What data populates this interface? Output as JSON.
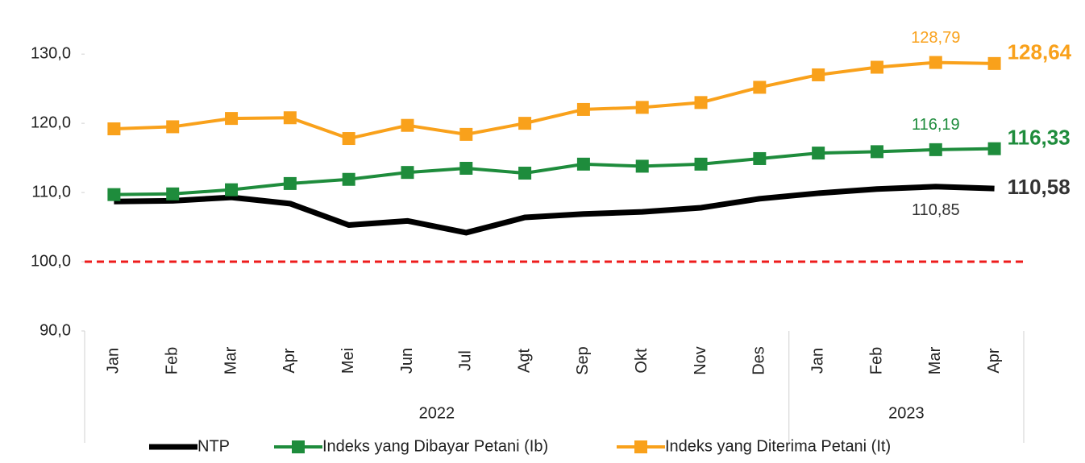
{
  "chart_data": {
    "type": "line",
    "categories": [
      "Jan",
      "Feb",
      "Mar",
      "Apr",
      "Mei",
      "Jun",
      "Jul",
      "Agt",
      "Sep",
      "Okt",
      "Nov",
      "Des",
      "Jan",
      "Feb",
      "Mar",
      "Apr"
    ],
    "category_groups": [
      {
        "name": "2022",
        "size": 12
      },
      {
        "name": "2023",
        "size": 4
      }
    ],
    "series": [
      {
        "name": "NTP",
        "color": "#000000",
        "marker": false,
        "values": [
          108.7,
          108.8,
          109.3,
          108.4,
          105.3,
          105.9,
          104.2,
          106.4,
          106.9,
          107.2,
          107.8,
          109.1,
          109.9,
          110.5,
          110.85,
          110.58
        ],
        "value_labels": [
          null,
          null,
          null,
          null,
          null,
          null,
          null,
          null,
          null,
          null,
          null,
          null,
          null,
          null,
          "110,85",
          "110,58"
        ]
      },
      {
        "name": "Indeks yang Dibayar Petani (Ib)",
        "color": "#1e8c3c",
        "marker": true,
        "values": [
          109.7,
          109.8,
          110.4,
          111.3,
          111.9,
          112.9,
          113.5,
          112.8,
          114.1,
          113.8,
          114.1,
          114.9,
          115.7,
          115.9,
          116.19,
          116.33
        ],
        "value_labels": [
          null,
          null,
          null,
          null,
          null,
          null,
          null,
          null,
          null,
          null,
          null,
          null,
          null,
          null,
          "116,19",
          "116,33"
        ]
      },
      {
        "name": "Indeks yang Diterima Petani (It)",
        "color": "#f9a11b",
        "marker": true,
        "values": [
          119.2,
          119.5,
          120.7,
          120.8,
          117.8,
          119.7,
          118.4,
          120.0,
          122.0,
          122.3,
          123.0,
          125.2,
          127.0,
          128.1,
          128.79,
          128.64
        ],
        "value_labels": [
          null,
          null,
          null,
          null,
          null,
          null,
          null,
          null,
          null,
          null,
          null,
          null,
          null,
          null,
          "128,79",
          "128,64"
        ]
      }
    ],
    "reference_line": {
      "value": 100,
      "color": "#ee1c1c"
    },
    "ylim": [
      90,
      137
    ],
    "yticks": [
      {
        "value": 90,
        "label": "90,0"
      },
      {
        "value": 100,
        "label": "100,0"
      },
      {
        "value": 110,
        "label": "110,0"
      },
      {
        "value": 120,
        "label": "120,0"
      },
      {
        "value": 130,
        "label": "130,0"
      }
    ],
    "legend": "bottom"
  }
}
